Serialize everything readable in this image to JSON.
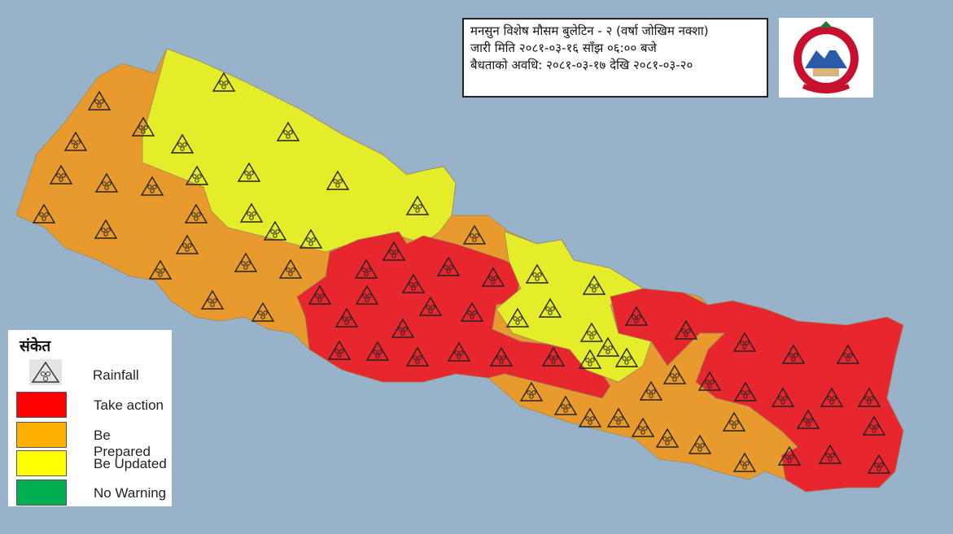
{
  "bulletin": {
    "line1": "मनसुन  विशेष मौसम बुलेटिन - २ (वर्षा जोखिम नक्शा)",
    "line2": "जारी मिति २०८१-०३-१६ साँझ ०६:०० बजे",
    "line3": "बैधताको अवधि: २०८१-०३-१७ देखि २०८१-०३-२०"
  },
  "emblem": {
    "name": "Government of Nepal emblem",
    "icon": "nepal-emblem"
  },
  "legend": {
    "title": "संकेत",
    "rainfall": {
      "label": "Rainfall",
      "icon": "rainfall-triangle-icon"
    },
    "items": [
      {
        "label": "Take action",
        "color": "#ff0000"
      },
      {
        "label": "Be Prepared",
        "color": "#ffb000"
      },
      {
        "label": "Be Updated",
        "color": "#ffff00"
      },
      {
        "label": "No Warning",
        "color": "#00b050"
      }
    ]
  },
  "map": {
    "background": "#98b3c9",
    "zone_colors": {
      "take_action": "#e8262e",
      "be_prepared": "#e89a2c",
      "be_updated": "#e5ec2a"
    },
    "zones": [
      {
        "region": "far-west and west lowlands",
        "level": "be_prepared"
      },
      {
        "region": "north-west highlands",
        "level": "be_updated"
      },
      {
        "region": "central",
        "level": "take_action"
      },
      {
        "region": "central-north",
        "level": "be_updated"
      },
      {
        "region": "east",
        "level": "take_action"
      }
    ]
  }
}
